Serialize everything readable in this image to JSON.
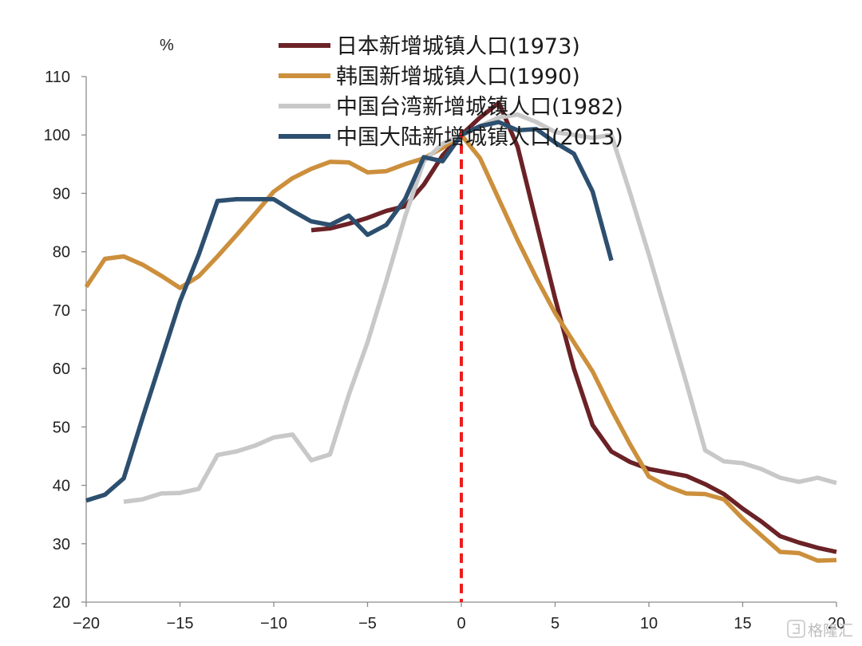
{
  "chart_data": {
    "type": "line",
    "title": "",
    "xlabel": "",
    "ylabel": "%",
    "xlim": [
      -20,
      20
    ],
    "ylim": [
      20,
      110
    ],
    "x_ticks": [
      -20,
      -15,
      -10,
      -5,
      0,
      5,
      10,
      15,
      20
    ],
    "x_tick_labels": [
      "-20",
      "-15",
      "-10",
      "-5",
      "0",
      "5",
      "10",
      "15",
      "20"
    ],
    "y_ticks": [
      20,
      30,
      40,
      50,
      60,
      70,
      80,
      90,
      100,
      110
    ],
    "y_tick_labels": [
      "20",
      "30",
      "40",
      "50",
      "60",
      "70",
      "80",
      "90",
      "100",
      "110"
    ],
    "grid": false,
    "legend_position": "top",
    "reference_line": {
      "x": 0,
      "color": "#ee1c1c",
      "style": "dashed"
    },
    "series": [
      {
        "name": "日本新增城镇人口(1973)",
        "color": "#6b2226",
        "x": [
          -8,
          -7,
          -6,
          -5,
          -4,
          -3,
          -2,
          -1,
          0,
          1,
          2,
          3,
          4,
          5,
          6,
          7,
          8,
          9,
          10,
          11,
          12,
          13,
          14,
          15,
          16,
          17,
          18,
          19,
          20
        ],
        "y": [
          83.7,
          84.0,
          84.8,
          85.8,
          87.0,
          87.8,
          91.5,
          96.5,
          100.0,
          103.0,
          105.5,
          98.0,
          85.0,
          72.0,
          60.0,
          50.3,
          45.8,
          44.0,
          42.8,
          42.2,
          41.6,
          40.2,
          38.5,
          36.0,
          33.8,
          31.3,
          30.2,
          29.3,
          28.6
        ]
      },
      {
        "name": "韩国新增城镇人口(1990)",
        "color": "#cc8f3c",
        "x": [
          -20,
          -19,
          -18,
          -17,
          -16,
          -15,
          -14,
          -13,
          -12,
          -11,
          -10,
          -9,
          -8,
          -7,
          -6,
          -5,
          -4,
          -3,
          -2,
          -1,
          0,
          1,
          2,
          3,
          4,
          5,
          6,
          7,
          8,
          9,
          10,
          11,
          12,
          13,
          14,
          15,
          16,
          17,
          18,
          19,
          20
        ],
        "y": [
          74.0,
          78.8,
          79.2,
          77.8,
          75.9,
          73.8,
          75.8,
          79.2,
          82.8,
          86.5,
          90.3,
          92.6,
          94.2,
          95.4,
          95.3,
          93.6,
          93.8,
          95.0,
          96.0,
          97.8,
          100.0,
          96.0,
          89.0,
          82.0,
          75.5,
          69.5,
          64.5,
          59.5,
          53.0,
          47.0,
          41.5,
          39.8,
          38.6,
          38.5,
          37.6,
          34.3,
          31.4,
          28.6,
          28.4,
          27.1,
          27.2
        ]
      },
      {
        "name": "中国台湾新增城镇人口(1982)",
        "color": "#c8c8c8",
        "x": [
          -18,
          -17,
          -16,
          -15,
          -14,
          -13,
          -12,
          -11,
          -10,
          -9,
          -8,
          -7,
          -6,
          -5,
          -4,
          -3,
          -2,
          -1,
          0,
          1,
          2,
          3,
          4,
          5,
          6,
          7,
          8,
          9,
          10,
          11,
          12,
          13,
          14,
          15,
          16,
          17,
          18,
          19,
          20
        ],
        "y": [
          37.2,
          37.6,
          38.6,
          38.7,
          39.4,
          45.2,
          45.8,
          46.8,
          48.2,
          48.7,
          44.3,
          45.3,
          55.5,
          64.5,
          75.0,
          86.0,
          95.5,
          98.5,
          100.0,
          101.5,
          103.0,
          103.5,
          102.2,
          100.5,
          100.0,
          99.5,
          100.0,
          90.0,
          79.5,
          68.5,
          57.5,
          46.0,
          44.1,
          43.8,
          42.8,
          41.3,
          40.6,
          41.3,
          40.4
        ]
      },
      {
        "name": "中国大陆新增城镇人口(2013)",
        "color": "#2d4f6f",
        "x": [
          -20,
          -19,
          -18,
          -17,
          -16,
          -15,
          -14,
          -13,
          -12,
          -11,
          -10,
          -9,
          -8,
          -7,
          -6,
          -5,
          -4,
          -3,
          -2,
          -1,
          0,
          1,
          2,
          3,
          4,
          5,
          6,
          7,
          8
        ],
        "y": [
          37.4,
          38.4,
          41.2,
          51.5,
          61.5,
          71.5,
          79.5,
          88.7,
          89.0,
          89.0,
          89.0,
          87.0,
          85.2,
          84.6,
          86.2,
          82.9,
          84.6,
          89.0,
          96.2,
          95.5,
          100.0,
          101.5,
          102.2,
          100.8,
          101.0,
          98.7,
          96.8,
          90.3,
          78.5
        ]
      }
    ]
  },
  "watermark": {
    "text": "格隆汇",
    "icon": "glh-logo-icon"
  }
}
